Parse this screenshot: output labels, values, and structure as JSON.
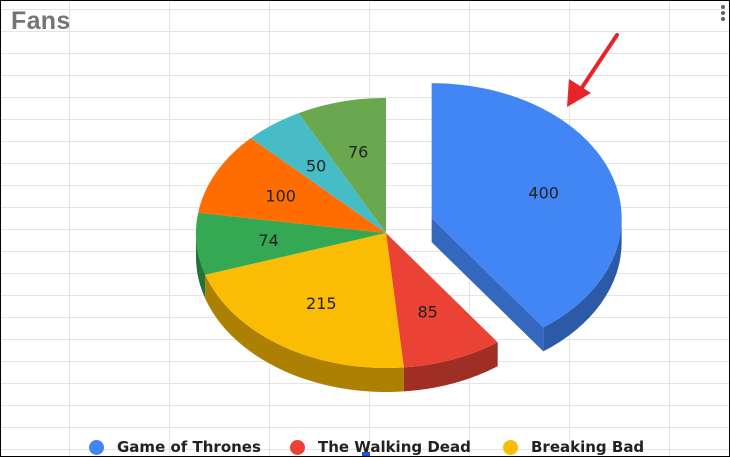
{
  "title": "Fans",
  "icons": {
    "menu": "vertical-dots-icon",
    "arrow": "red-arrow-icon"
  },
  "legend": [
    {
      "label": "Game of Thrones",
      "color": "#4285f4"
    },
    {
      "label": "The Walking Dead",
      "color": "#ea4335"
    },
    {
      "label": "Breaking Bad",
      "color": "#fbbc04"
    }
  ],
  "chart_data": {
    "type": "pie",
    "style": "3d",
    "title": "Fans",
    "exploded_slice": 0,
    "values": [
      400,
      85,
      215,
      74,
      100,
      50,
      76
    ],
    "data_labels": [
      "400",
      "85",
      "215",
      "74",
      "100",
      "50",
      "76"
    ],
    "colors": [
      "#4285f4",
      "#ea4335",
      "#fbbc04",
      "#34a853",
      "#ff6d01",
      "#46bdc6",
      "#6aa84f"
    ],
    "legend_entries": [
      "Game of Thrones",
      "The Walking Dead",
      "Breaking Bad"
    ],
    "legend_position": "bottom",
    "grid": true
  }
}
